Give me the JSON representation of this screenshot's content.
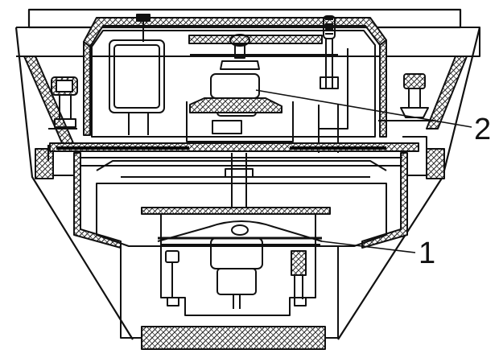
{
  "diagram": {
    "callouts": [
      {
        "id": "1",
        "text": "1"
      },
      {
        "id": "2",
        "text": "2"
      }
    ],
    "colors": {
      "line": "#111111",
      "hatch": "#222222",
      "background": "#ffffff"
    }
  }
}
